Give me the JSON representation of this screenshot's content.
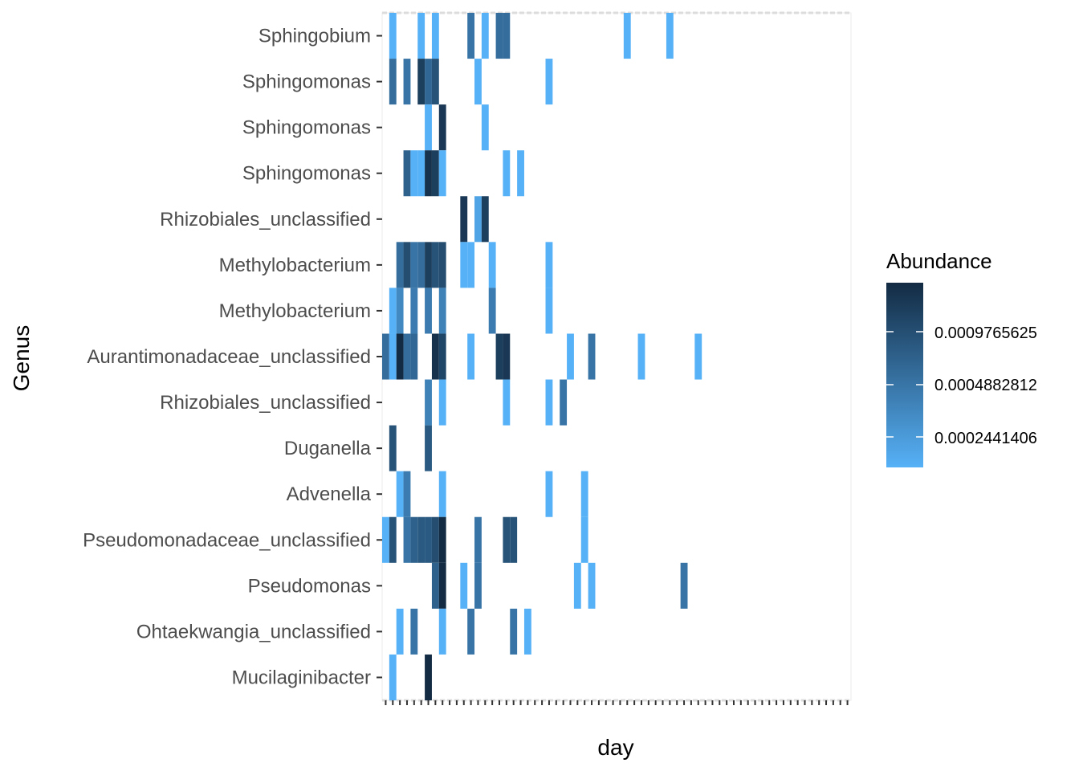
{
  "chart_data": {
    "type": "heatmap",
    "xlabel": "day",
    "ylabel": "Genus",
    "legend_title": "Abundance",
    "legend_breaks": [
      "0.0009765625",
      "0.0004882812",
      "0.0002441406"
    ],
    "color_low": "#56B1F7",
    "color_high": "#132B43",
    "background": "#ffffff",
    "rows": [
      "Sphingobium",
      "Sphingomonas",
      "Sphingomonas",
      "Sphingomonas",
      "Rhizobiales_unclassified",
      "Methylobacterium",
      "Methylobacterium",
      "Aurantimonadaceae_unclassified",
      "Rhizobiales_unclassified",
      "Duganella",
      "Advenella",
      "Pseudomonadaceae_unclassified",
      "Pseudomonas",
      "Ohtaekwangia_unclassified",
      "Mucilaginibacter"
    ],
    "x_ticks_note": "day tick labels are too small to read",
    "cells": [
      {
        "row": 0,
        "col": 1,
        "level": 0.0
      },
      {
        "row": 0,
        "col": 5,
        "level": 0.0
      },
      {
        "row": 0,
        "col": 7,
        "level": 0.0
      },
      {
        "row": 0,
        "col": 12,
        "level": 0.45
      },
      {
        "row": 0,
        "col": 14,
        "level": 0.0
      },
      {
        "row": 0,
        "col": 16,
        "level": 0.5
      },
      {
        "row": 0,
        "col": 17,
        "level": 0.5
      },
      {
        "row": 0,
        "col": 34,
        "level": 0.0
      },
      {
        "row": 0,
        "col": 40,
        "level": 0.0
      },
      {
        "row": 1,
        "col": 1,
        "level": 0.5
      },
      {
        "row": 1,
        "col": 3,
        "level": 0.45
      },
      {
        "row": 1,
        "col": 5,
        "level": 0.85
      },
      {
        "row": 1,
        "col": 6,
        "level": 0.55
      },
      {
        "row": 1,
        "col": 7,
        "level": 0.7
      },
      {
        "row": 1,
        "col": 13,
        "level": 0.0
      },
      {
        "row": 1,
        "col": 23,
        "level": 0.0
      },
      {
        "row": 2,
        "col": 6,
        "level": 0.0
      },
      {
        "row": 2,
        "col": 8,
        "level": 0.9
      },
      {
        "row": 2,
        "col": 14,
        "level": 0.0
      },
      {
        "row": 3,
        "col": 3,
        "level": 0.6
      },
      {
        "row": 3,
        "col": 4,
        "level": 0.0
      },
      {
        "row": 3,
        "col": 5,
        "level": 0.0
      },
      {
        "row": 3,
        "col": 6,
        "level": 0.95
      },
      {
        "row": 3,
        "col": 7,
        "level": 0.85
      },
      {
        "row": 3,
        "col": 8,
        "level": 0.0
      },
      {
        "row": 3,
        "col": 17,
        "level": 0.0
      },
      {
        "row": 3,
        "col": 19,
        "level": 0.0
      },
      {
        "row": 4,
        "col": 11,
        "level": 0.9
      },
      {
        "row": 4,
        "col": 13,
        "level": 0.1
      },
      {
        "row": 4,
        "col": 14,
        "level": 0.85
      },
      {
        "row": 5,
        "col": 2,
        "level": 0.5
      },
      {
        "row": 5,
        "col": 3,
        "level": 0.75
      },
      {
        "row": 5,
        "col": 4,
        "level": 0.45
      },
      {
        "row": 5,
        "col": 5,
        "level": 0.5
      },
      {
        "row": 5,
        "col": 6,
        "level": 0.85
      },
      {
        "row": 5,
        "col": 7,
        "level": 0.7
      },
      {
        "row": 5,
        "col": 8,
        "level": 0.75
      },
      {
        "row": 5,
        "col": 11,
        "level": 0.0
      },
      {
        "row": 5,
        "col": 12,
        "level": 0.0
      },
      {
        "row": 5,
        "col": 15,
        "level": 0.0
      },
      {
        "row": 5,
        "col": 23,
        "level": 0.0
      },
      {
        "row": 6,
        "col": 1,
        "level": 0.0
      },
      {
        "row": 6,
        "col": 2,
        "level": 0.3
      },
      {
        "row": 6,
        "col": 4,
        "level": 0.4
      },
      {
        "row": 6,
        "col": 6,
        "level": 0.4
      },
      {
        "row": 6,
        "col": 8,
        "level": 0.35
      },
      {
        "row": 6,
        "col": 15,
        "level": 0.4
      },
      {
        "row": 6,
        "col": 23,
        "level": 0.0
      },
      {
        "row": 7,
        "col": 0,
        "level": 0.5
      },
      {
        "row": 7,
        "col": 1,
        "level": 0.0
      },
      {
        "row": 7,
        "col": 2,
        "level": 1.0
      },
      {
        "row": 7,
        "col": 3,
        "level": 0.5
      },
      {
        "row": 7,
        "col": 4,
        "level": 0.55
      },
      {
        "row": 7,
        "col": 7,
        "level": 0.95
      },
      {
        "row": 7,
        "col": 8,
        "level": 0.8
      },
      {
        "row": 7,
        "col": 12,
        "level": 0.0
      },
      {
        "row": 7,
        "col": 16,
        "level": 0.85
      },
      {
        "row": 7,
        "col": 17,
        "level": 0.9
      },
      {
        "row": 7,
        "col": 26,
        "level": 0.0
      },
      {
        "row": 7,
        "col": 29,
        "level": 0.45
      },
      {
        "row": 7,
        "col": 36,
        "level": 0.0
      },
      {
        "row": 7,
        "col": 44,
        "level": 0.0
      },
      {
        "row": 8,
        "col": 6,
        "level": 0.35
      },
      {
        "row": 8,
        "col": 8,
        "level": 0.0
      },
      {
        "row": 8,
        "col": 17,
        "level": 0.0
      },
      {
        "row": 8,
        "col": 23,
        "level": 0.0
      },
      {
        "row": 8,
        "col": 25,
        "level": 0.45
      },
      {
        "row": 9,
        "col": 1,
        "level": 0.7
      },
      {
        "row": 9,
        "col": 6,
        "level": 0.65
      },
      {
        "row": 10,
        "col": 2,
        "level": 0.0
      },
      {
        "row": 10,
        "col": 3,
        "level": 0.4
      },
      {
        "row": 10,
        "col": 8,
        "level": 0.0
      },
      {
        "row": 10,
        "col": 23,
        "level": 0.0
      },
      {
        "row": 10,
        "col": 28,
        "level": 0.0
      },
      {
        "row": 11,
        "col": 0,
        "level": 0.0
      },
      {
        "row": 11,
        "col": 1,
        "level": 0.7
      },
      {
        "row": 11,
        "col": 3,
        "level": 0.45
      },
      {
        "row": 11,
        "col": 4,
        "level": 0.6
      },
      {
        "row": 11,
        "col": 5,
        "level": 0.65
      },
      {
        "row": 11,
        "col": 6,
        "level": 0.65
      },
      {
        "row": 11,
        "col": 7,
        "level": 0.75
      },
      {
        "row": 11,
        "col": 8,
        "level": 1.0
      },
      {
        "row": 11,
        "col": 13,
        "level": 0.45
      },
      {
        "row": 11,
        "col": 17,
        "level": 0.7
      },
      {
        "row": 11,
        "col": 18,
        "level": 0.7
      },
      {
        "row": 11,
        "col": 28,
        "level": 0.0
      },
      {
        "row": 12,
        "col": 7,
        "level": 0.6
      },
      {
        "row": 12,
        "col": 8,
        "level": 1.0
      },
      {
        "row": 12,
        "col": 11,
        "level": 0.0
      },
      {
        "row": 12,
        "col": 13,
        "level": 0.45
      },
      {
        "row": 12,
        "col": 27,
        "level": 0.0
      },
      {
        "row": 12,
        "col": 29,
        "level": 0.0
      },
      {
        "row": 12,
        "col": 42,
        "level": 0.45
      },
      {
        "row": 13,
        "col": 2,
        "level": 0.0
      },
      {
        "row": 13,
        "col": 4,
        "level": 0.45
      },
      {
        "row": 13,
        "col": 8,
        "level": 0.0
      },
      {
        "row": 13,
        "col": 12,
        "level": 0.45
      },
      {
        "row": 13,
        "col": 18,
        "level": 0.45
      },
      {
        "row": 13,
        "col": 20,
        "level": 0.0
      },
      {
        "row": 14,
        "col": 1,
        "level": 0.0
      },
      {
        "row": 14,
        "col": 6,
        "level": 1.0
      }
    ]
  }
}
